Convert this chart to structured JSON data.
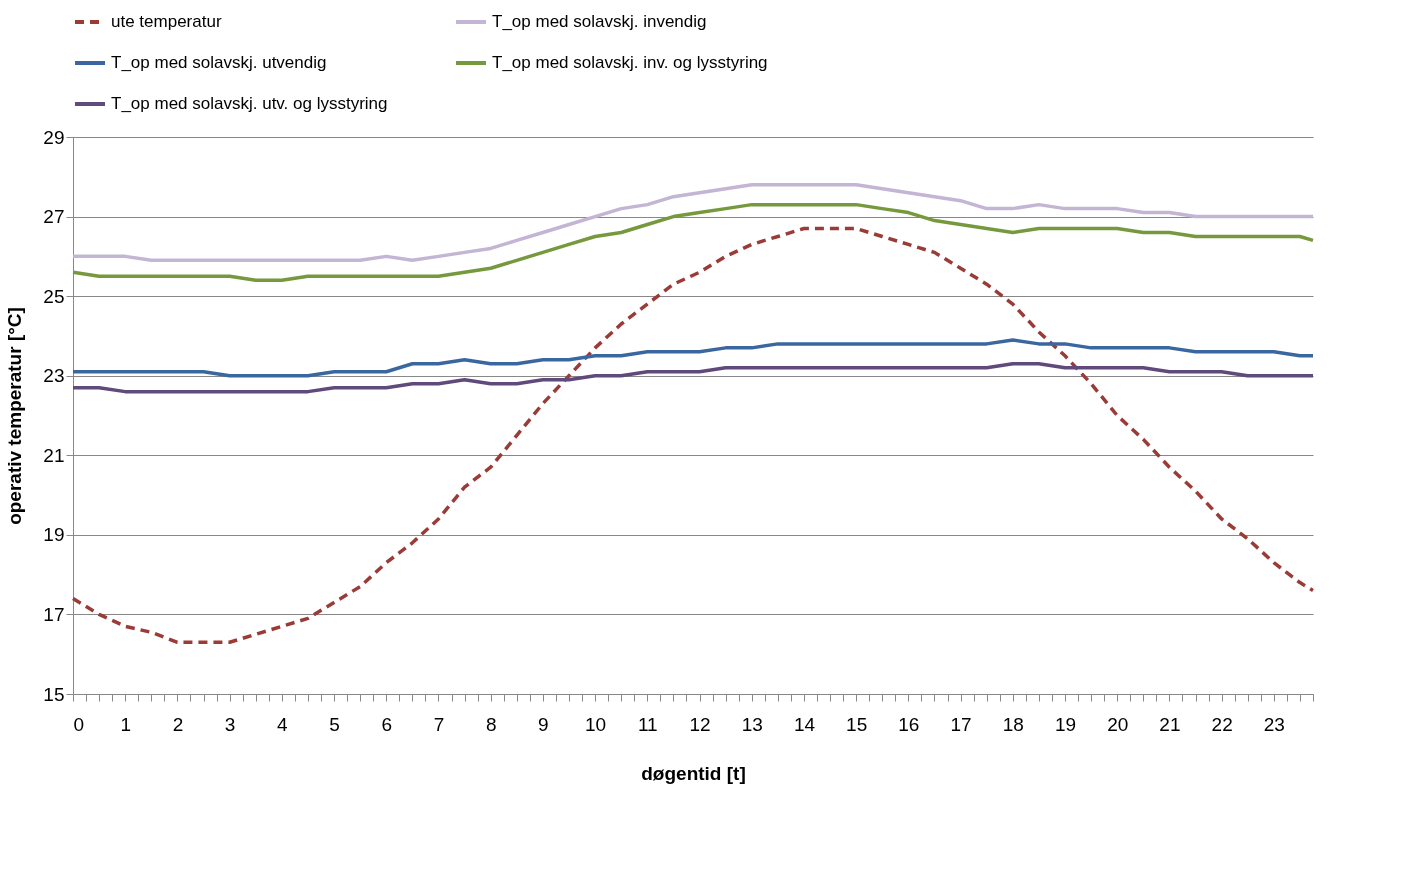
{
  "chart_data": {
    "type": "line",
    "xlabel": "døgentid [t]",
    "ylabel": "operativ temperatur [°C]",
    "x": [
      0,
      0.5,
      1,
      1.5,
      2,
      2.5,
      3,
      3.5,
      4,
      4.5,
      5,
      5.5,
      6,
      6.5,
      7,
      7.5,
      8,
      8.5,
      9,
      9.5,
      10,
      10.5,
      11,
      11.5,
      12,
      12.5,
      13,
      13.5,
      14,
      14.5,
      15,
      15.5,
      16,
      16.5,
      17,
      17.5,
      18,
      18.5,
      19,
      19.5,
      20,
      20.5,
      21,
      21.5,
      22,
      22.5,
      23,
      23.5,
      23.75
    ],
    "series": [
      {
        "name": "ute temperatur",
        "color": "#9b3b37",
        "line_style": "dashed",
        "values": [
          17.4,
          17.0,
          16.7,
          16.55,
          16.3,
          16.3,
          16.3,
          16.5,
          16.7,
          16.9,
          17.3,
          17.7,
          18.3,
          18.8,
          19.4,
          20.2,
          20.7,
          21.5,
          22.3,
          23.0,
          23.7,
          24.3,
          24.8,
          25.3,
          25.6,
          26.0,
          26.3,
          26.5,
          26.7,
          26.7,
          26.7,
          26.5,
          26.3,
          26.1,
          25.7,
          25.3,
          24.8,
          24.1,
          23.5,
          22.8,
          22.0,
          21.4,
          20.7,
          20.1,
          19.4,
          18.9,
          18.3,
          17.8,
          17.6
        ]
      },
      {
        "name": "T_op med solavskj. invendig",
        "color": "#c3b5d3",
        "line_style": "solid",
        "values": [
          26.0,
          26.0,
          26.0,
          25.9,
          25.9,
          25.9,
          25.9,
          25.9,
          25.9,
          25.9,
          25.9,
          25.9,
          26.0,
          25.9,
          26.0,
          26.1,
          26.2,
          26.4,
          26.6,
          26.8,
          27.0,
          27.2,
          27.3,
          27.5,
          27.6,
          27.7,
          27.8,
          27.8,
          27.8,
          27.8,
          27.8,
          27.7,
          27.6,
          27.5,
          27.4,
          27.2,
          27.2,
          27.3,
          27.2,
          27.2,
          27.2,
          27.1,
          27.1,
          27.0,
          27.0,
          27.0,
          27.0,
          27.0,
          27.0
        ]
      },
      {
        "name": "T_op med solavskj. utvendig",
        "color": "#3b67a0",
        "line_style": "solid",
        "values": [
          23.1,
          23.1,
          23.1,
          23.1,
          23.1,
          23.1,
          23.0,
          23.0,
          23.0,
          23.0,
          23.1,
          23.1,
          23.1,
          23.3,
          23.3,
          23.4,
          23.3,
          23.3,
          23.4,
          23.4,
          23.5,
          23.5,
          23.6,
          23.6,
          23.6,
          23.7,
          23.7,
          23.8,
          23.8,
          23.8,
          23.8,
          23.8,
          23.8,
          23.8,
          23.8,
          23.8,
          23.9,
          23.8,
          23.8,
          23.7,
          23.7,
          23.7,
          23.7,
          23.6,
          23.6,
          23.6,
          23.6,
          23.5,
          23.5
        ]
      },
      {
        "name": "T_op med solavskj. inv. og lysstyring",
        "color": "#77993d",
        "line_style": "solid",
        "values": [
          25.6,
          25.5,
          25.5,
          25.5,
          25.5,
          25.5,
          25.5,
          25.4,
          25.4,
          25.5,
          25.5,
          25.5,
          25.5,
          25.5,
          25.5,
          25.6,
          25.7,
          25.9,
          26.1,
          26.3,
          26.5,
          26.6,
          26.8,
          27.0,
          27.1,
          27.2,
          27.3,
          27.3,
          27.3,
          27.3,
          27.3,
          27.2,
          27.1,
          26.9,
          26.8,
          26.7,
          26.6,
          26.7,
          26.7,
          26.7,
          26.7,
          26.6,
          26.6,
          26.5,
          26.5,
          26.5,
          26.5,
          26.5,
          26.4
        ]
      },
      {
        "name": "T_op med solavskj. utv. og lysstyring",
        "color": "#604a7b",
        "line_style": "solid",
        "values": [
          22.7,
          22.7,
          22.6,
          22.6,
          22.6,
          22.6,
          22.6,
          22.6,
          22.6,
          22.6,
          22.7,
          22.7,
          22.7,
          22.8,
          22.8,
          22.9,
          22.8,
          22.8,
          22.9,
          22.9,
          23.0,
          23.0,
          23.1,
          23.1,
          23.1,
          23.2,
          23.2,
          23.2,
          23.2,
          23.2,
          23.2,
          23.2,
          23.2,
          23.2,
          23.2,
          23.2,
          23.3,
          23.3,
          23.2,
          23.2,
          23.2,
          23.2,
          23.1,
          23.1,
          23.1,
          23.0,
          23.0,
          23.0,
          23.0
        ]
      }
    ],
    "xlim": [
      0,
      23.75
    ],
    "xticks": [
      0,
      {
        "value": 0.25,
        "label": null
      },
      {
        "value": 0.5,
        "label": null
      },
      {
        "value": 0.75,
        "label": null
      },
      1,
      {
        "value": 1.25,
        "label": null
      },
      {
        "value": 1.5,
        "label": null
      },
      {
        "value": 1.75,
        "label": null
      },
      2,
      {
        "value": 2.25,
        "label": null
      },
      {
        "value": 2.5,
        "label": null
      },
      {
        "value": 2.75,
        "label": null
      },
      3,
      {
        "value": 3.25,
        "label": null
      },
      {
        "value": 3.5,
        "label": null
      },
      {
        "value": 3.75,
        "label": null
      },
      4,
      {
        "value": 4.25,
        "label": null
      },
      {
        "value": 4.5,
        "label": null
      },
      {
        "value": 4.75,
        "label": null
      },
      5,
      {
        "value": 5.25,
        "label": null
      },
      {
        "value": 5.5,
        "label": null
      },
      {
        "value": 5.75,
        "label": null
      },
      6,
      {
        "value": 6.25,
        "label": null
      },
      {
        "value": 6.5,
        "label": null
      },
      {
        "value": 6.75,
        "label": null
      },
      7,
      {
        "value": 7.25,
        "label": null
      },
      {
        "value": 7.5,
        "label": null
      },
      {
        "value": 7.75,
        "label": null
      },
      8,
      {
        "value": 8.25,
        "label": null
      },
      {
        "value": 8.5,
        "label": null
      },
      {
        "value": 8.75,
        "label": null
      },
      9,
      {
        "value": 9.25,
        "label": null
      },
      {
        "value": 9.5,
        "label": null
      },
      {
        "value": 9.75,
        "label": null
      },
      10,
      {
        "value": 10.25,
        "label": null
      },
      {
        "value": 10.5,
        "label": null
      },
      {
        "value": 10.75,
        "label": null
      },
      11,
      {
        "value": 11.25,
        "label": null
      },
      {
        "value": 11.5,
        "label": null
      },
      {
        "value": 11.75,
        "label": null
      },
      12,
      {
        "value": 12.25,
        "label": null
      },
      {
        "value": 12.5,
        "label": null
      },
      {
        "value": 12.75,
        "label": null
      },
      13,
      {
        "value": 13.25,
        "label": null
      },
      {
        "value": 13.5,
        "label": null
      },
      {
        "value": 13.75,
        "label": null
      },
      14,
      {
        "value": 14.25,
        "label": null
      },
      {
        "value": 14.5,
        "label": null
      },
      {
        "value": 14.75,
        "label": null
      },
      15,
      {
        "value": 15.25,
        "label": null
      },
      {
        "value": 15.5,
        "label": null
      },
      {
        "value": 15.75,
        "label": null
      },
      16,
      {
        "value": 16.25,
        "label": null
      },
      {
        "value": 16.5,
        "label": null
      },
      {
        "value": 16.75,
        "label": null
      },
      17,
      {
        "value": 17.25,
        "label": null
      },
      {
        "value": 17.5,
        "label": null
      },
      {
        "value": 17.75,
        "label": null
      },
      18,
      {
        "value": 18.25,
        "label": null
      },
      {
        "value": 18.5,
        "label": null
      },
      {
        "value": 18.75,
        "label": null
      },
      19,
      {
        "value": 19.25,
        "label": null
      },
      {
        "value": 19.5,
        "label": null
      },
      {
        "value": 19.75,
        "label": null
      },
      20,
      {
        "value": 20.25,
        "label": null
      },
      {
        "value": 20.5,
        "label": null
      },
      {
        "value": 20.75,
        "label": null
      },
      21,
      {
        "value": 21.25,
        "label": null
      },
      {
        "value": 21.5,
        "label": null
      },
      {
        "value": 21.75,
        "label": null
      },
      22,
      {
        "value": 22.25,
        "label": null
      },
      {
        "value": 22.5,
        "label": null
      },
      {
        "value": 22.75,
        "label": null
      },
      23,
      {
        "value": 23.25,
        "label": null
      },
      {
        "value": 23.5,
        "label": null
      },
      {
        "value": 23.75,
        "label": null
      }
    ],
    "ylim": [
      15,
      29
    ],
    "yticks": [
      15,
      17,
      19,
      21,
      23,
      25,
      27,
      29
    ],
    "grid": "y",
    "legend": "top",
    "marker": "none"
  }
}
